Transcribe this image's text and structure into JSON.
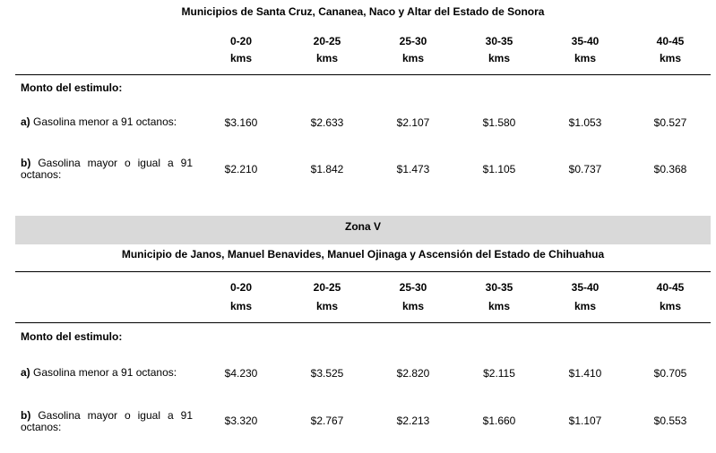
{
  "section1": {
    "title": "Municipios de Santa Cruz, Cananea, Naco y Altar del Estado de Sonora",
    "columns": [
      {
        "range": "0-20",
        "unit": "kms"
      },
      {
        "range": "20-25",
        "unit": "kms"
      },
      {
        "range": "25-30",
        "unit": "kms"
      },
      {
        "range": "30-35",
        "unit": "kms"
      },
      {
        "range": "35-40",
        "unit": "kms"
      },
      {
        "range": "40-45",
        "unit": "kms"
      }
    ],
    "stimulus_label": "Monto del estimulo:",
    "rows": [
      {
        "prefix": "a)",
        "label": " Gasolina menor a 91 octanos:",
        "values": [
          "$3.160",
          "$2.633",
          "$2.107",
          "$1.580",
          "$1.053",
          "$0.527"
        ]
      },
      {
        "prefix": "b)",
        "label": " Gasolina mayor o igual a 91 octanos:",
        "values": [
          "$2.210",
          "$1.842",
          "$1.473",
          "$1.105",
          "$0.737",
          "$0.368"
        ]
      }
    ]
  },
  "section2": {
    "zone": "Zona V",
    "title": "Municipio de Janos, Manuel Benavides, Manuel Ojinaga y Ascensión del Estado de Chihuahua",
    "columns": [
      {
        "range": "0-20",
        "unit": "kms"
      },
      {
        "range": "20-25",
        "unit": "kms"
      },
      {
        "range": "25-30",
        "unit": "kms"
      },
      {
        "range": "30-35",
        "unit": "kms"
      },
      {
        "range": "35-40",
        "unit": "kms"
      },
      {
        "range": "40-45",
        "unit": "kms"
      }
    ],
    "stimulus_label": "Monto del estimulo:",
    "rows": [
      {
        "prefix": "a)",
        "label": " Gasolina menor a 91 octanos:",
        "values": [
          "$4.230",
          "$3.525",
          "$2.820",
          "$2.115",
          "$1.410",
          "$0.705"
        ]
      },
      {
        "prefix": "b)",
        "label": " Gasolina mayor o igual a 91 octanos:",
        "values": [
          "$3.320",
          "$2.767",
          "$2.213",
          "$1.660",
          "$1.107",
          "$0.553"
        ]
      }
    ]
  }
}
